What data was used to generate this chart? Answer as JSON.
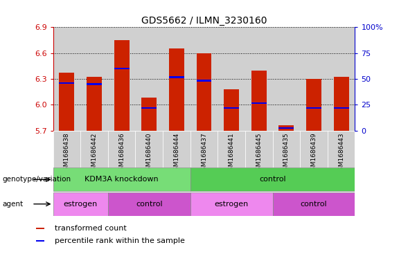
{
  "title": "GDS5662 / ILMN_3230160",
  "samples": [
    "GSM1686438",
    "GSM1686442",
    "GSM1686436",
    "GSM1686440",
    "GSM1686444",
    "GSM1686437",
    "GSM1686441",
    "GSM1686445",
    "GSM1686435",
    "GSM1686439",
    "GSM1686443"
  ],
  "bar_heights": [
    6.37,
    6.32,
    6.75,
    6.08,
    6.65,
    6.6,
    6.18,
    6.4,
    5.76,
    6.3,
    6.32
  ],
  "blue_marker_y": [
    6.25,
    6.24,
    6.42,
    5.96,
    6.32,
    6.28,
    5.96,
    6.02,
    5.73,
    5.96,
    5.96
  ],
  "y_min": 5.7,
  "y_max": 6.9,
  "y_ticks": [
    5.7,
    6.0,
    6.3,
    6.6,
    6.9
  ],
  "y_right_ticks": [
    0,
    25,
    50,
    75,
    100
  ],
  "y_right_labels": [
    "0",
    "25",
    "50",
    "75",
    "100%"
  ],
  "bar_color": "#cc2200",
  "blue_color": "#0000ee",
  "bar_width": 0.55,
  "ylabel_left_color": "#cc0000",
  "ylabel_right_color": "#0000cc",
  "genotype_groups": [
    {
      "label": "KDM3A knockdown",
      "start": 0,
      "end": 5,
      "color": "#77dd77"
    },
    {
      "label": "control",
      "start": 5,
      "end": 11,
      "color": "#55cc55"
    }
  ],
  "agent_groups": [
    {
      "label": "estrogen",
      "start": 0,
      "end": 2,
      "color": "#ee88ee"
    },
    {
      "label": "control",
      "start": 2,
      "end": 5,
      "color": "#cc55cc"
    },
    {
      "label": "estrogen",
      "start": 5,
      "end": 8,
      "color": "#ee88ee"
    },
    {
      "label": "control",
      "start": 8,
      "end": 11,
      "color": "#cc55cc"
    }
  ],
  "genotype_label": "genotype/variation",
  "agent_label": "agent",
  "legend_items": [
    {
      "color": "#cc2200",
      "label": "transformed count"
    },
    {
      "color": "#0000ee",
      "label": "percentile rank within the sample"
    }
  ],
  "col_bg_color": "#d0d0d0",
  "col_bg_edge": "#ffffff"
}
